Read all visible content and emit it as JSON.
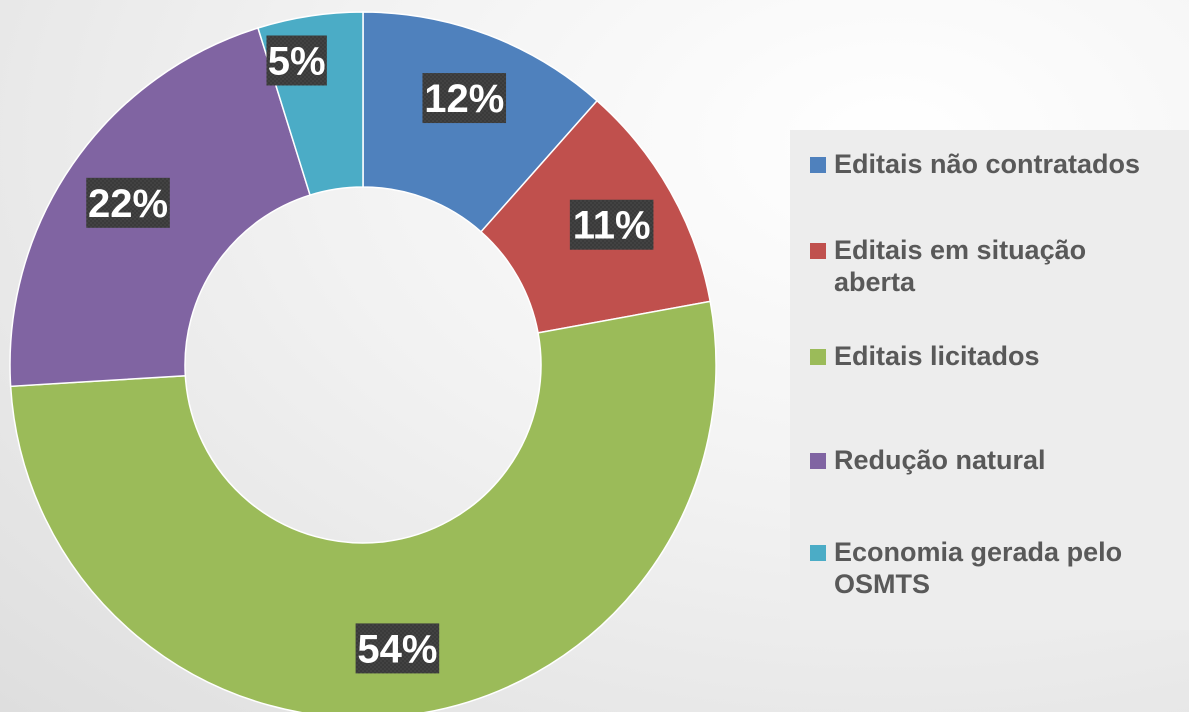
{
  "chart_data": {
    "type": "donut",
    "categories": [
      "Editais não contratados",
      "Editais em situação aberta",
      "Editais licitados",
      "Redução natural",
      "Economia gerada pelo OSMTS"
    ],
    "values": [
      12,
      11,
      54,
      22,
      5
    ],
    "labels": [
      "12%",
      "11%",
      "54%",
      "22%",
      "5%"
    ],
    "colors": [
      "#4f81bd",
      "#c0504d",
      "#9bbb59",
      "#8064a2",
      "#4bacc6"
    ],
    "legend_position": "right",
    "start": "12 o'clock, clockwise"
  }
}
